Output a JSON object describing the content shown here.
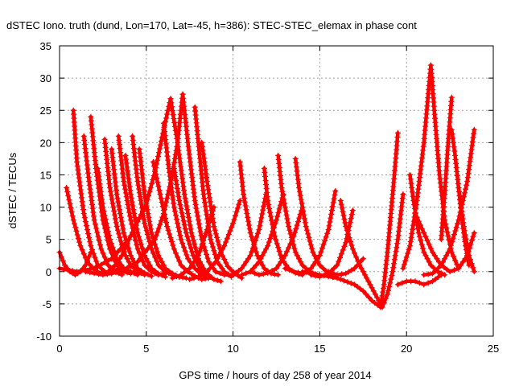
{
  "chart_data": {
    "type": "scatter",
    "title": "dSTEC Iono. truth (dund, Lon=170, Lat=-45, h=386): STEC-STEC_elemax in phase cont",
    "xlabel": "GPS time / hours of day 258 of year 2014",
    "ylabel": "dSTEC  / TECUs",
    "xlim": [
      0,
      25
    ],
    "ylim": [
      -10,
      35
    ],
    "xticks": [
      0,
      5,
      10,
      15,
      20,
      25
    ],
    "yticks": [
      -10,
      -5,
      0,
      5,
      10,
      15,
      20,
      25,
      30,
      35
    ],
    "grid": true,
    "marker": "plus",
    "series_color": "#ff0000",
    "series": [
      {
        "x": [
          0.0,
          0.3,
          0.6,
          0.9,
          1.2,
          1.5,
          1.8
        ],
        "y": [
          3.0,
          1.0,
          0.0,
          -0.5,
          0.0,
          1.0,
          3.0
        ]
      },
      {
        "x": [
          0.4,
          0.8,
          1.2,
          1.6,
          2.0,
          2.4,
          2.8,
          3.2,
          3.6,
          4.0
        ],
        "y": [
          13.0,
          8.0,
          4.0,
          1.5,
          0.3,
          -0.3,
          0.0,
          1.0,
          2.5,
          5.0
        ]
      },
      {
        "x": [
          0.8,
          1.0,
          1.4,
          1.8,
          2.2,
          2.6,
          3.0,
          3.4
        ],
        "y": [
          25.0,
          17.0,
          9.0,
          4.0,
          1.0,
          0.0,
          -0.3,
          0.5
        ]
      },
      {
        "x": [
          1.4,
          1.7,
          2.0,
          2.4,
          2.8,
          3.2,
          3.6
        ],
        "y": [
          21.0,
          14.0,
          8.0,
          3.5,
          1.0,
          0.0,
          -0.5
        ]
      },
      {
        "x": [
          1.8,
          2.1,
          2.5,
          2.9,
          3.3,
          3.7,
          4.1,
          4.5
        ],
        "y": [
          24.0,
          16.0,
          8.0,
          3.5,
          1.0,
          0.0,
          -0.3,
          0.3
        ]
      },
      {
        "x": [
          2.2,
          2.5,
          2.9,
          3.3,
          3.7,
          4.1,
          4.5
        ],
        "y": [
          16.0,
          10.0,
          5.0,
          2.0,
          0.5,
          0.0,
          -0.5
        ]
      },
      {
        "x": [
          2.6,
          2.9,
          3.3,
          3.7,
          4.1,
          4.5,
          4.9
        ],
        "y": [
          20.5,
          13.0,
          7.0,
          3.0,
          1.0,
          0.0,
          -0.5
        ]
      },
      {
        "x": [
          3.0,
          3.3,
          3.7,
          4.1,
          4.5,
          4.9,
          5.3
        ],
        "y": [
          19.0,
          12.0,
          6.0,
          2.5,
          0.5,
          -0.2,
          -0.7
        ]
      },
      {
        "x": [
          3.4,
          3.7,
          4.1,
          4.5,
          4.9,
          5.3,
          5.7,
          6.1
        ],
        "y": [
          21.0,
          14.0,
          8.0,
          3.5,
          1.0,
          0.0,
          -0.5,
          -0.3
        ]
      },
      {
        "x": [
          3.8,
          4.1,
          4.5,
          4.9,
          5.3,
          5.7,
          6.1
        ],
        "y": [
          18.0,
          12.0,
          6.0,
          2.5,
          0.5,
          -0.3,
          -0.8
        ]
      },
      {
        "x": [
          4.2,
          4.5,
          4.9,
          5.3,
          5.7,
          6.1,
          6.5,
          6.9
        ],
        "y": [
          21.0,
          14.0,
          7.5,
          3.5,
          1.0,
          0.0,
          -0.5,
          -0.8
        ]
      },
      {
        "x": [
          4.6,
          4.9,
          5.3,
          5.7,
          6.1,
          6.5,
          6.9,
          7.3
        ],
        "y": [
          19.0,
          12.0,
          6.0,
          2.5,
          0.5,
          -0.3,
          -0.8,
          -1.0
        ]
      },
      {
        "x": [
          0.0,
          1.0,
          2.0,
          3.0,
          4.0,
          5.0,
          5.5,
          6.0,
          6.4
        ],
        "y": [
          0.5,
          0.0,
          0.5,
          2.0,
          5.0,
          10.5,
          15.5,
          22.0,
          26.8
        ]
      },
      {
        "x": [
          6.4,
          6.8,
          7.2,
          7.6,
          8.0,
          8.4,
          8.8
        ],
        "y": [
          26.8,
          20.0,
          12.0,
          6.0,
          2.0,
          0.0,
          -1.0
        ]
      },
      {
        "x": [
          5.4,
          5.8,
          6.2,
          6.6,
          7.0,
          7.4,
          7.8,
          8.2,
          8.6
        ],
        "y": [
          17.0,
          12.0,
          7.0,
          3.5,
          1.0,
          0.0,
          -0.7,
          -1.2,
          -1.0
        ]
      },
      {
        "x": [
          6.0,
          6.3,
          6.6,
          7.0,
          7.4,
          7.8,
          8.2,
          8.6
        ],
        "y": [
          23.0,
          16.0,
          10.0,
          5.0,
          2.0,
          0.5,
          -0.5,
          -1.0
        ]
      },
      {
        "x": [
          1.5,
          2.5,
          3.5,
          4.5,
          5.5,
          6.0,
          6.5,
          6.8,
          7.1
        ],
        "y": [
          0.0,
          -0.5,
          0.0,
          1.5,
          5.0,
          9.0,
          15.0,
          20.0,
          27.5
        ]
      },
      {
        "x": [
          7.1,
          7.4,
          7.8,
          8.2,
          8.6,
          9.0
        ],
        "y": [
          27.5,
          20.0,
          11.0,
          5.0,
          1.5,
          0.0
        ]
      },
      {
        "x": [
          6.6,
          6.9,
          7.3,
          7.7,
          8.1,
          8.5,
          8.9,
          9.3
        ],
        "y": [
          16.0,
          11.0,
          6.0,
          2.5,
          0.5,
          -0.5,
          -1.2,
          -1.5
        ]
      },
      {
        "x": [
          7.8,
          8.0,
          8.3,
          8.7,
          9.1,
          9.5,
          9.9
        ],
        "y": [
          25.5,
          20.0,
          12.0,
          5.0,
          1.5,
          0.0,
          -0.8
        ]
      },
      {
        "x": [
          8.2,
          8.5,
          8.9,
          9.3,
          9.7,
          10.1,
          10.5
        ],
        "y": [
          20.0,
          14.0,
          7.0,
          3.0,
          0.8,
          -0.3,
          -1.0
        ]
      },
      {
        "x": [
          6.5,
          7.0,
          7.5,
          8.0,
          8.5,
          8.9
        ],
        "y": [
          -1.0,
          -0.5,
          0.5,
          2.5,
          6.5,
          10.0
        ]
      },
      {
        "x": [
          7.5,
          8.0,
          8.5,
          9.0,
          9.5,
          10.0,
          10.4
        ],
        "y": [
          -1.2,
          -0.8,
          0.0,
          1.5,
          4.0,
          7.5,
          11.0
        ]
      },
      {
        "x": [
          9.0,
          9.5,
          10.0,
          10.5,
          11.0,
          11.5,
          11.9
        ],
        "y": [
          0.0,
          -0.5,
          -0.5,
          0.5,
          2.5,
          6.5,
          12.0
        ]
      },
      {
        "x": [
          10.4,
          10.6,
          11.0,
          11.4,
          11.8,
          12.2,
          12.6
        ],
        "y": [
          17.0,
          12.0,
          6.0,
          2.5,
          0.5,
          -0.3,
          -0.5
        ]
      },
      {
        "x": [
          11.8,
          12.0,
          12.4,
          12.8,
          13.2,
          13.6,
          14.0
        ],
        "y": [
          16.0,
          11.0,
          5.5,
          2.0,
          0.5,
          -0.2,
          -0.5
        ]
      },
      {
        "x": [
          12.6,
          12.8,
          13.2,
          13.6,
          14.0,
          14.4,
          14.8
        ],
        "y": [
          18.0,
          13.0,
          7.0,
          3.0,
          1.0,
          0.0,
          -0.5
        ]
      },
      {
        "x": [
          13.6,
          13.8,
          14.2,
          14.6,
          15.0,
          15.4,
          15.8
        ],
        "y": [
          17.5,
          13.0,
          7.0,
          3.0,
          1.0,
          0.0,
          -0.8
        ]
      },
      {
        "x": [
          10.5,
          11.0,
          11.5,
          12.0,
          12.5,
          12.9
        ],
        "y": [
          -0.5,
          0.0,
          1.5,
          4.0,
          8.0,
          12.0
        ]
      },
      {
        "x": [
          11.0,
          11.5,
          12.0,
          12.5,
          13.0,
          13.5,
          14.0
        ],
        "y": [
          0.0,
          -0.5,
          -0.2,
          0.5,
          2.5,
          5.5,
          10.0
        ]
      },
      {
        "x": [
          13.0,
          13.5,
          14.0,
          14.5,
          15.0,
          15.5,
          15.9
        ],
        "y": [
          0.5,
          0.0,
          -0.3,
          0.5,
          2.5,
          6.5,
          12.5
        ]
      },
      {
        "x": [
          14.5,
          15.0,
          15.5,
          16.0,
          16.5,
          16.9
        ],
        "y": [
          -0.5,
          -0.8,
          -0.3,
          1.0,
          4.5,
          9.5
        ]
      },
      {
        "x": [
          16.2,
          16.5,
          16.9,
          17.3,
          17.7,
          18.1,
          18.6
        ],
        "y": [
          11.0,
          7.0,
          3.5,
          1.0,
          -1.0,
          -3.0,
          -5.5
        ]
      },
      {
        "x": [
          14.0,
          15.0,
          16.0,
          17.0,
          17.5,
          18.0,
          18.5
        ],
        "y": [
          0.0,
          -0.5,
          -1.0,
          -2.0,
          -3.0,
          -4.5,
          -5.5
        ]
      },
      {
        "x": [
          18.5,
          18.7,
          18.9,
          19.1,
          19.3,
          19.5
        ],
        "y": [
          -5.5,
          -2.0,
          3.0,
          9.0,
          15.0,
          21.5
        ]
      },
      {
        "x": [
          18.6,
          18.9,
          19.2,
          19.5,
          19.8
        ],
        "y": [
          -5.5,
          -3.5,
          0.0,
          5.0,
          12.0
        ]
      },
      {
        "x": [
          15.5,
          16.0,
          16.5,
          17.0,
          17.5
        ],
        "y": [
          0.0,
          -0.5,
          -0.3,
          0.5,
          2.0
        ]
      },
      {
        "x": [
          19.5,
          20.0,
          20.5,
          21.0,
          21.5,
          22.0
        ],
        "y": [
          -2.0,
          -1.5,
          -1.5,
          -2.0,
          -1.5,
          -0.5
        ]
      },
      {
        "x": [
          20.2,
          20.4,
          20.7,
          21.0,
          21.4,
          21.8,
          22.2
        ],
        "y": [
          15.0,
          11.0,
          6.0,
          3.0,
          1.0,
          0.0,
          -0.5
        ]
      },
      {
        "x": [
          19.8,
          20.2,
          20.6,
          21.0,
          21.4
        ],
        "y": [
          0.5,
          4.0,
          11.0,
          20.0,
          32.0
        ]
      },
      {
        "x": [
          21.4,
          21.6,
          21.9,
          22.2,
          22.6,
          23.0
        ],
        "y": [
          32.0,
          25.0,
          15.0,
          8.0,
          3.0,
          0.5
        ]
      },
      {
        "x": [
          22.0,
          22.2,
          22.4,
          22.6
        ],
        "y": [
          5.0,
          12.0,
          20.0,
          27.0
        ]
      },
      {
        "x": [
          22.6,
          22.8,
          23.0,
          23.2,
          23.4,
          23.6
        ],
        "y": [
          22.0,
          18.0,
          13.0,
          8.0,
          4.0,
          1.0
        ]
      },
      {
        "x": [
          21.0,
          21.5,
          22.0,
          22.5,
          23.0,
          23.5,
          23.9
        ],
        "y": [
          -0.5,
          -0.3,
          1.0,
          3.5,
          8.0,
          14.0,
          22.0
        ]
      },
      {
        "x": [
          20.5,
          21.0,
          21.5,
          22.0,
          22.5,
          23.0,
          23.5,
          23.9
        ],
        "y": [
          9.0,
          6.0,
          3.0,
          1.0,
          0.0,
          0.5,
          2.5,
          6.0
        ]
      },
      {
        "x": [
          23.0,
          23.3,
          23.6,
          23.9
        ],
        "y": [
          13.0,
          7.0,
          2.5,
          0.0
        ]
      }
    ]
  }
}
